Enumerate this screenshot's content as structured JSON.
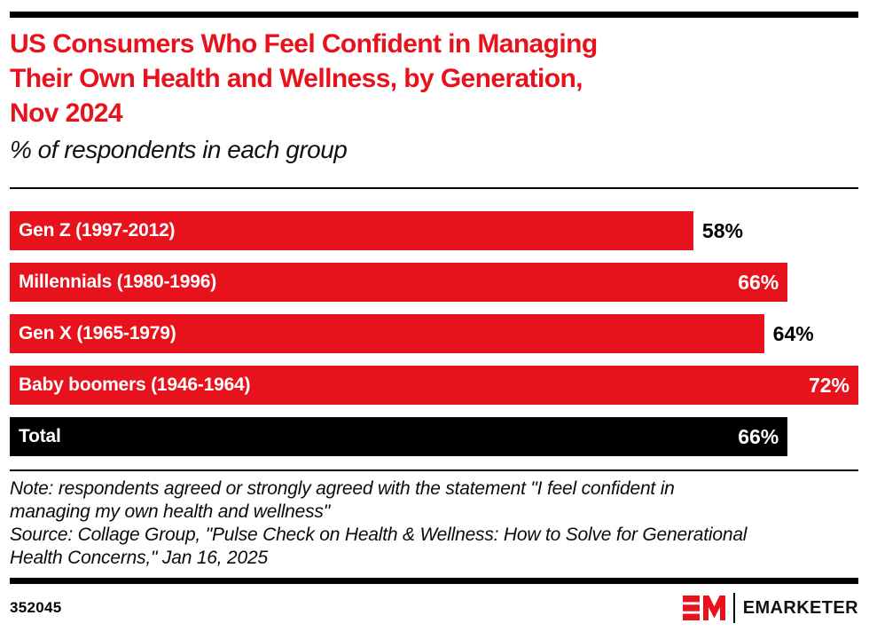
{
  "header": {
    "title": "US Consumers Who Feel Confident in Managing Their Own Health and Wellness, by Generation, Nov 2024",
    "title_lines": [
      "US Consumers Who Feel Confident in Managing",
      "Their Own Health and Wellness, by Generation,",
      "Nov 2024"
    ],
    "subtitle": "% of respondents in each group"
  },
  "chart_data": {
    "type": "bar",
    "orientation": "horizontal",
    "title": "US Consumers Who Feel Confident in Managing Their Own Health and Wellness, by Generation, Nov 2024",
    "subtitle": "% of respondents in each group",
    "unit": "%",
    "categories": [
      "Gen Z (1997-2012)",
      "Millennials (1980-1996)",
      "Gen X (1965-1979)",
      "Baby boomers (1946-1964)",
      "Total"
    ],
    "values": [
      58,
      66,
      64,
      72,
      66
    ],
    "value_labels": [
      "58%",
      "66%",
      "64%",
      "72%",
      "66%"
    ],
    "value_label_positions": [
      "outside",
      "inside",
      "outside",
      "inside",
      "inside"
    ],
    "bar_colors": [
      "#E8121D",
      "#E8121D",
      "#E8121D",
      "#E8121D",
      "#000000"
    ],
    "xlim": [
      0,
      72
    ],
    "grid": false,
    "legend": "none"
  },
  "footnote": {
    "note": "Note: respondents agreed or strongly agreed with the statement \"I feel confident in managing my own health and wellness\"",
    "note_lines": [
      "Note: respondents agreed or strongly agreed with the statement \"I feel confident in",
      "managing my own health and wellness\""
    ],
    "source": "Source: Collage Group, \"Pulse Check on Health & Wellness: How to Solve for Generational Health Concerns,\" Jan 16, 2025",
    "source_lines": [
      "Source: Collage Group, \"Pulse Check on Health & Wellness: How to Solve for Generational",
      "Health Concerns,\" Jan 16, 2025"
    ]
  },
  "footer": {
    "chart_id": "352045",
    "brand": "EMARKETER",
    "logo_monogram": "EM"
  },
  "colors": {
    "accent_red": "#E8121D",
    "bar_black": "#000000",
    "text": "#000000",
    "background": "#FFFFFF"
  }
}
